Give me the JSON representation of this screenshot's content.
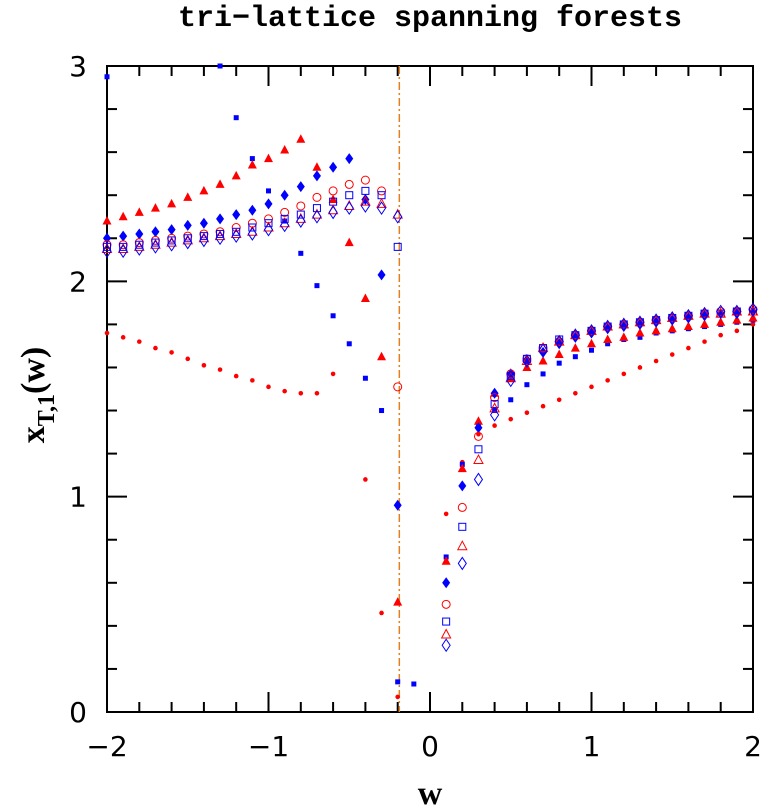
{
  "chart_data": {
    "type": "scatter",
    "title": "tri−lattice spanning forests",
    "xlabel": "w",
    "ylabel": [
      "x",
      "T,1",
      "(w)"
    ],
    "x": [
      -2,
      -1.9,
      -1.8,
      -1.7,
      -1.6,
      -1.5,
      -1.4,
      -1.3,
      -1.2,
      -1.1,
      -1,
      -0.9,
      -0.8,
      -0.7,
      -0.6,
      -0.5,
      -0.4,
      -0.3,
      -0.2,
      -0.1,
      0,
      0.1,
      0.2,
      0.3,
      0.4,
      0.5,
      0.6,
      0.7,
      0.8,
      0.9,
      1,
      1.1,
      1.2,
      1.3,
      1.4,
      1.5,
      1.6,
      1.7,
      1.8,
      1.9,
      2
    ],
    "series": [
      {
        "marker": "dot",
        "color": "#ff0000",
        "values": [
          1.76,
          1.74,
          1.72,
          1.69,
          1.67,
          1.64,
          1.61,
          1.59,
          1.56,
          1.54,
          1.51,
          1.49,
          1.48,
          1.48,
          1.57,
          1.71,
          1.08,
          0.46,
          0.07,
          null,
          null,
          0.92,
          1.16,
          1.29,
          1.33,
          1.36,
          1.39,
          1.42,
          1.45,
          1.48,
          1.51,
          1.54,
          1.57,
          1.6,
          1.63,
          1.66,
          1.69,
          1.72,
          1.75,
          1.77,
          1.8
        ]
      },
      {
        "marker": "square",
        "color": "#0000ff",
        "values": [
          2.95,
          null,
          null,
          null,
          null,
          null,
          null,
          3.0,
          2.76,
          2.57,
          2.42,
          2.28,
          2.13,
          1.98,
          1.84,
          1.71,
          1.55,
          1.4,
          0.14,
          0.13,
          null,
          0.72,
          1.15,
          1.34,
          1.4,
          1.45,
          1.52,
          1.57,
          1.62,
          1.65,
          1.68,
          1.71,
          1.73,
          1.74,
          1.76,
          1.77,
          1.78,
          1.79,
          1.8,
          1.81,
          1.82
        ]
      },
      {
        "marker": "triangle",
        "color": "#ff0000",
        "values": [
          2.28,
          2.3,
          2.32,
          2.34,
          2.36,
          2.39,
          2.42,
          2.45,
          2.49,
          2.54,
          2.57,
          2.61,
          2.66,
          2.53,
          2.38,
          2.18,
          1.92,
          1.65,
          0.51,
          null,
          null,
          0.7,
          1.13,
          1.35,
          1.48,
          1.55,
          1.6,
          1.63,
          1.66,
          1.69,
          1.71,
          1.73,
          1.74,
          1.76,
          1.77,
          1.78,
          1.79,
          1.8,
          1.81,
          1.82,
          1.83
        ]
      },
      {
        "marker": "diamond",
        "color": "#0000ff",
        "values": [
          2.2,
          2.21,
          2.22,
          2.23,
          2.24,
          2.26,
          2.27,
          2.29,
          2.31,
          2.33,
          2.36,
          2.4,
          2.44,
          2.49,
          2.53,
          2.57,
          2.38,
          2.03,
          0.96,
          null,
          null,
          0.6,
          1.05,
          1.32,
          1.48,
          1.57,
          1.63,
          1.67,
          1.71,
          1.74,
          1.76,
          1.78,
          1.79,
          1.8,
          1.81,
          1.82,
          1.83,
          1.84,
          1.85,
          1.85,
          1.86
        ]
      },
      {
        "marker": "circle-open",
        "color": "#ff0000",
        "values": [
          2.17,
          2.17,
          2.18,
          2.19,
          2.2,
          2.21,
          2.22,
          2.23,
          2.25,
          2.27,
          2.29,
          2.32,
          2.35,
          2.39,
          2.42,
          2.45,
          2.47,
          2.42,
          1.51,
          null,
          null,
          0.5,
          0.95,
          1.28,
          1.46,
          1.57,
          1.64,
          1.69,
          1.72,
          1.75,
          1.77,
          1.79,
          1.8,
          1.81,
          1.82,
          1.83,
          1.84,
          1.85,
          1.86,
          1.86,
          1.87
        ]
      },
      {
        "marker": "square-open",
        "color": "#0000ff",
        "values": [
          2.16,
          2.16,
          2.17,
          2.18,
          2.19,
          2.2,
          2.21,
          2.22,
          2.23,
          2.25,
          2.27,
          2.29,
          2.31,
          2.34,
          2.37,
          2.4,
          2.42,
          2.4,
          2.16,
          null,
          null,
          0.42,
          0.86,
          1.22,
          1.43,
          1.56,
          1.64,
          1.69,
          1.73,
          1.75,
          1.77,
          1.79,
          1.8,
          1.81,
          1.82,
          1.83,
          1.84,
          1.85,
          1.85,
          1.86,
          1.86
        ]
      },
      {
        "marker": "triangle-open",
        "color": "#ff0000",
        "values": [
          2.15,
          2.15,
          2.16,
          2.17,
          2.18,
          2.19,
          2.2,
          2.21,
          2.22,
          2.23,
          2.25,
          2.27,
          2.29,
          2.31,
          2.33,
          2.35,
          2.37,
          2.36,
          2.31,
          null,
          null,
          0.36,
          0.77,
          1.17,
          1.41,
          1.55,
          1.63,
          1.69,
          1.72,
          1.75,
          1.77,
          1.79,
          1.8,
          1.81,
          1.82,
          1.83,
          1.84,
          1.85,
          1.85,
          1.86,
          1.86
        ]
      },
      {
        "marker": "diamond-open",
        "color": "#0000ff",
        "values": [
          2.14,
          2.14,
          2.15,
          2.16,
          2.17,
          2.18,
          2.19,
          2.2,
          2.21,
          2.22,
          2.24,
          2.26,
          2.28,
          2.3,
          2.32,
          2.34,
          2.35,
          2.34,
          2.3,
          null,
          null,
          0.31,
          0.69,
          1.08,
          1.38,
          1.54,
          1.63,
          1.68,
          1.72,
          1.75,
          1.77,
          1.79,
          1.8,
          1.81,
          1.82,
          1.83,
          1.84,
          1.85,
          1.86,
          1.86,
          1.87
        ]
      }
    ],
    "vline": {
      "x": -0.19,
      "color": "#e08020"
    },
    "xlim": [
      -2,
      2
    ],
    "ylim": [
      0,
      3
    ],
    "xticks": [
      {
        "value": -2,
        "label": "−2"
      },
      {
        "value": -1,
        "label": "−1"
      },
      0,
      1,
      2
    ],
    "yticks": [
      0,
      1,
      2,
      3
    ],
    "xminorticks": [
      -1.8,
      -1.6,
      -1.4,
      -1.2,
      -0.8,
      -0.6,
      -0.4,
      -0.2,
      0.2,
      0.4,
      0.6,
      0.8,
      1.2,
      1.4,
      1.6,
      1.8
    ],
    "yminorticks": [
      0.2,
      0.4,
      0.6,
      0.8,
      1.2,
      1.4,
      1.6,
      1.8,
      2.2,
      2.4,
      2.6,
      2.8
    ]
  }
}
